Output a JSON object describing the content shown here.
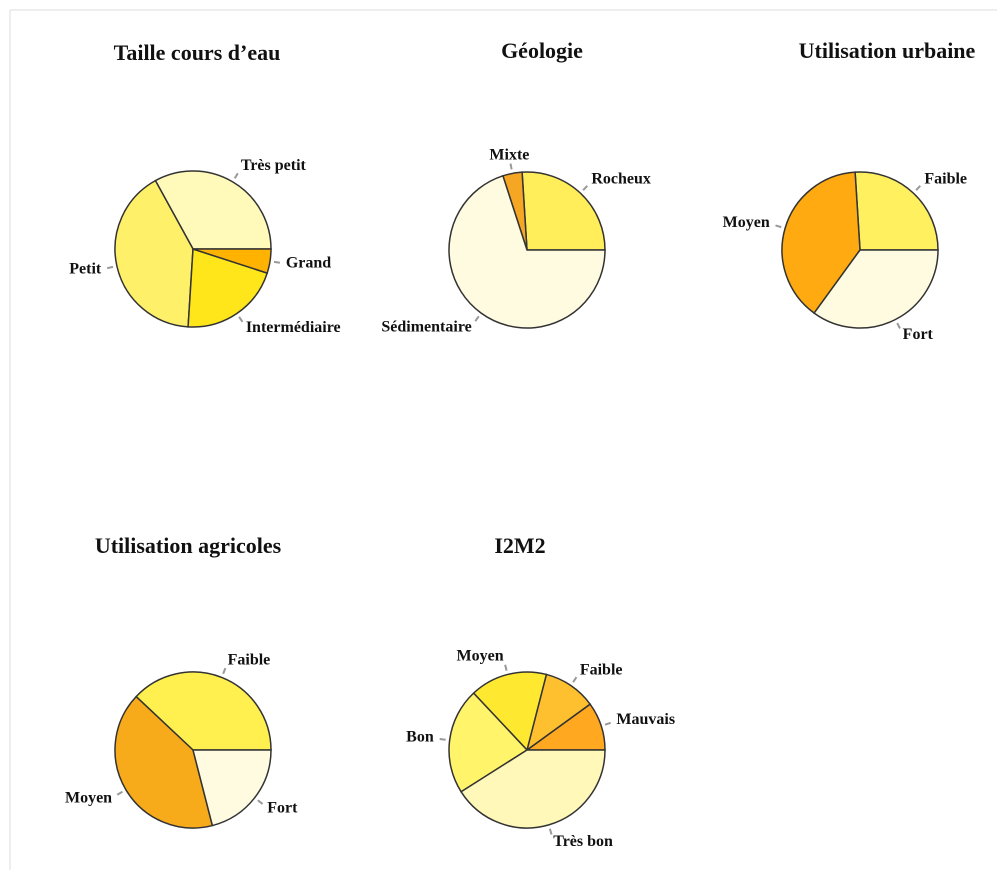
{
  "chart_data": [
    {
      "type": "pie",
      "title": "Taille cours d’eau",
      "categories": [
        "Très petit",
        "Petit",
        "Intermédiaire",
        "Grand"
      ],
      "values": [
        33,
        41,
        21,
        5
      ],
      "colors": [
        "#fffaba",
        "#fff06a",
        "#ffe61a",
        "#ffb300"
      ]
    },
    {
      "type": "pie",
      "title": "Géologie",
      "categories": [
        "Rocheux",
        "Mixte",
        "Sédimentaire"
      ],
      "values": [
        26,
        4,
        70
      ],
      "colors": [
        "#ffee5a",
        "#f5a623",
        "#fffbe0"
      ]
    },
    {
      "type": "pie",
      "title": "Utilisation urbaine",
      "categories": [
        "Faible",
        "Moyen",
        "Fort"
      ],
      "values": [
        26,
        39,
        35
      ],
      "colors": [
        "#fff060",
        "#ffaa10",
        "#fffbe0"
      ]
    },
    {
      "type": "pie",
      "title": "Utilisation agricoles",
      "categories": [
        "Faible",
        "Moyen",
        "Fort"
      ],
      "values": [
        38,
        41,
        21
      ],
      "colors": [
        "#fff050",
        "#f8ab1a",
        "#fffbe0"
      ]
    },
    {
      "type": "pie",
      "title": "I2M2",
      "categories": [
        "Mauvais",
        "Faible",
        "Moyen",
        "Bon",
        "Très bon"
      ],
      "values": [
        10,
        11,
        16,
        22,
        41
      ],
      "colors": [
        "#ffa820",
        "#ffc030",
        "#ffe830",
        "#fff46a",
        "#fff8b8"
      ]
    }
  ]
}
